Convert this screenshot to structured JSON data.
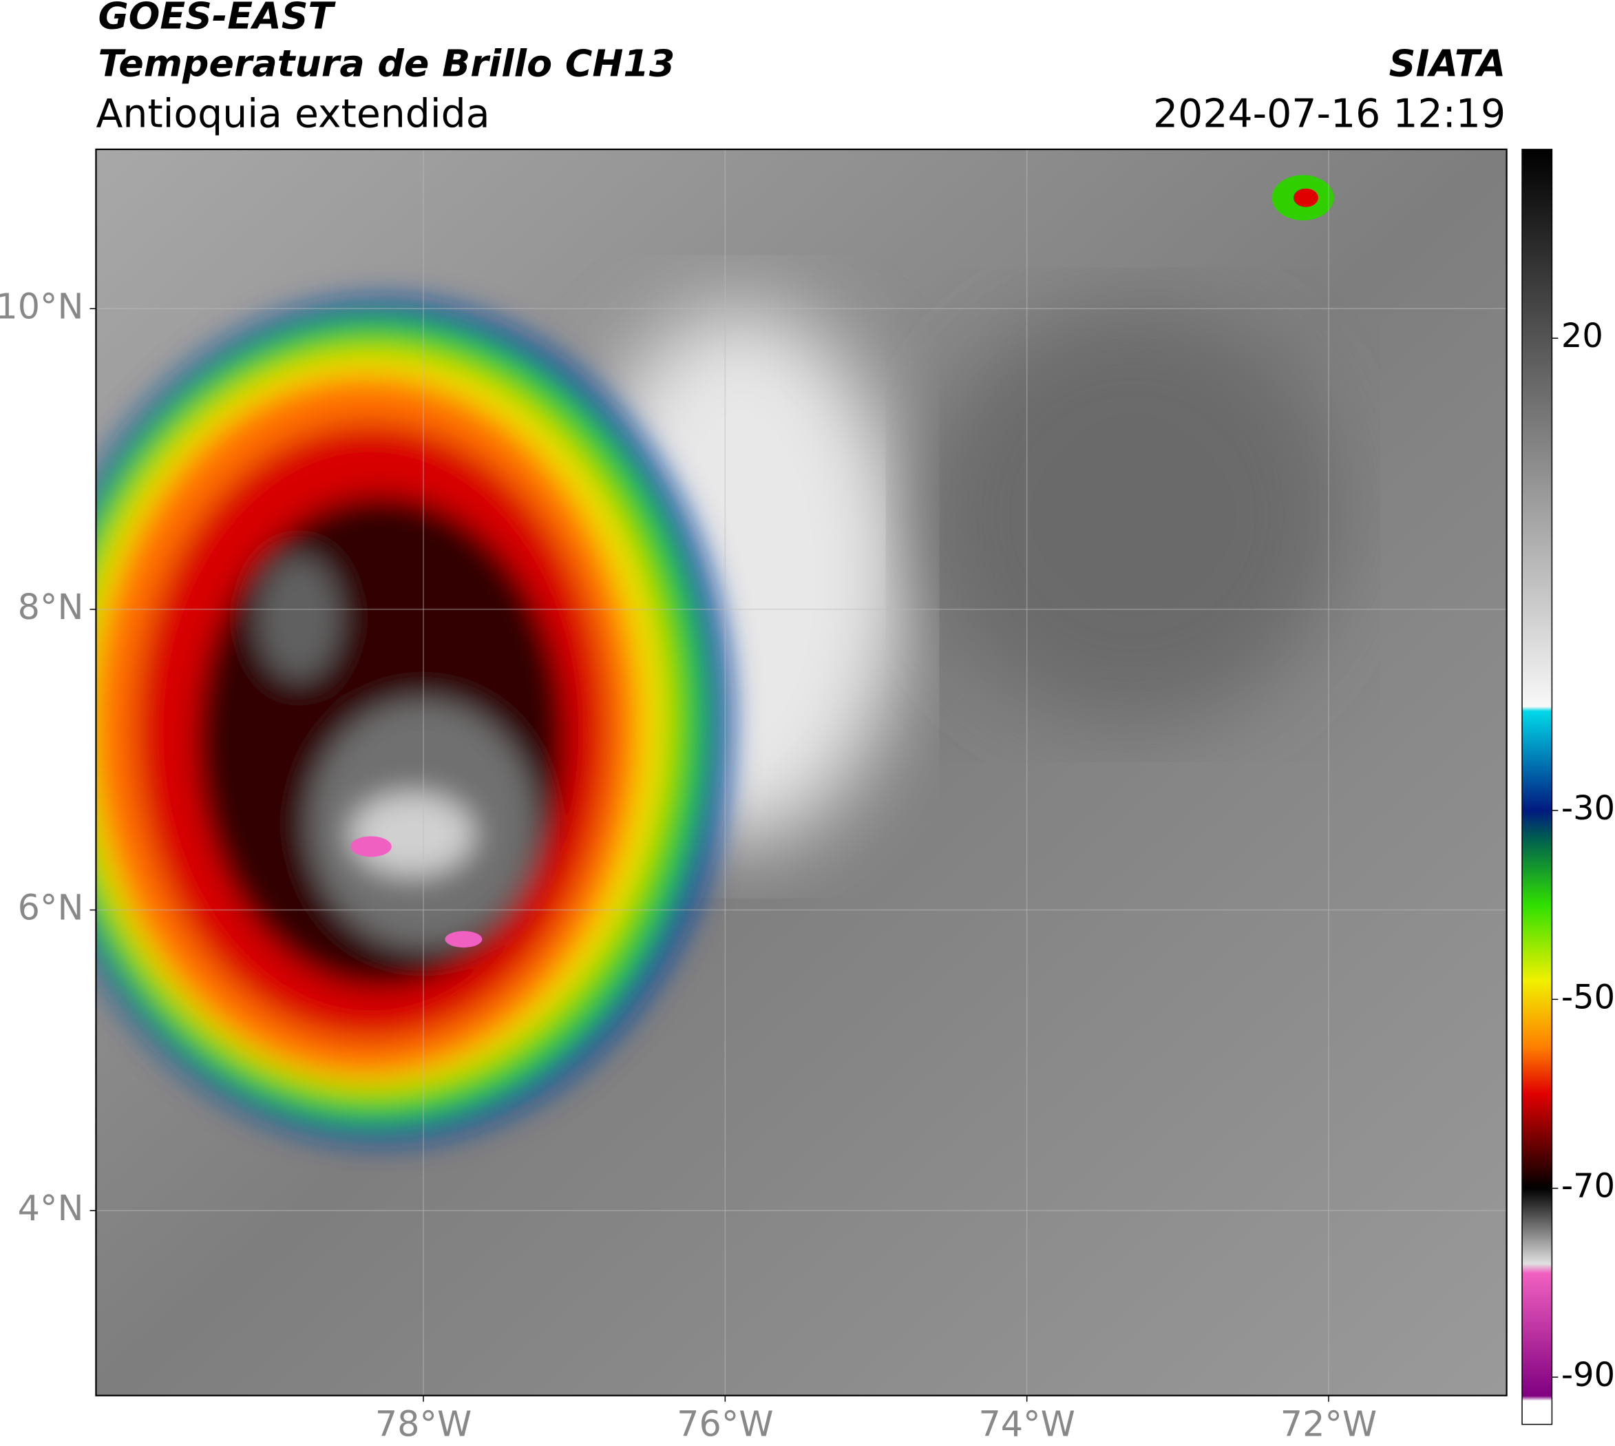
{
  "header": {
    "satellite": "GOES-EAST",
    "product": "Temperatura de Brillo CH13",
    "region": "Antioquia extendida",
    "source": "SIATA",
    "datetime": "2024-07-16 12:19"
  },
  "map": {
    "xlim": [
      -80.17,
      -70.82
    ],
    "ylim": [
      2.77,
      11.06
    ],
    "xticks": [
      {
        "value": -78,
        "label": "78°W"
      },
      {
        "value": -76,
        "label": "76°W"
      },
      {
        "value": -74,
        "label": "74°W"
      },
      {
        "value": -72,
        "label": "72°W"
      }
    ],
    "yticks": [
      {
        "value": 10,
        "label": "10°N"
      },
      {
        "value": 8,
        "label": "8°N"
      },
      {
        "value": 6,
        "label": "6°N"
      },
      {
        "value": 4,
        "label": "4°N"
      }
    ],
    "grid": true
  },
  "colorbar": {
    "lim": [
      -95,
      40
    ],
    "ticks": [
      20,
      -30,
      -50,
      -70,
      -90
    ],
    "colors": [
      {
        "value": 40,
        "color": "#000000"
      },
      {
        "value": -19,
        "color": "#f8f8f8"
      },
      {
        "value": -19.5,
        "color": "#00d8e8"
      },
      {
        "value": -30,
        "color": "#001a80"
      },
      {
        "value": -33,
        "color": "#006050"
      },
      {
        "value": -40,
        "color": "#30e000"
      },
      {
        "value": -48,
        "color": "#f0f000"
      },
      {
        "value": -55,
        "color": "#ff8000"
      },
      {
        "value": -60,
        "color": "#e00000"
      },
      {
        "value": -68,
        "color": "#300000"
      },
      {
        "value": -70,
        "color": "#000000"
      },
      {
        "value": -78,
        "color": "#e0e0e0"
      },
      {
        "value": -79,
        "color": "#f060c0"
      },
      {
        "value": -92,
        "color": "#800080"
      },
      {
        "value": -92.5,
        "color": "#ffffff"
      }
    ]
  }
}
